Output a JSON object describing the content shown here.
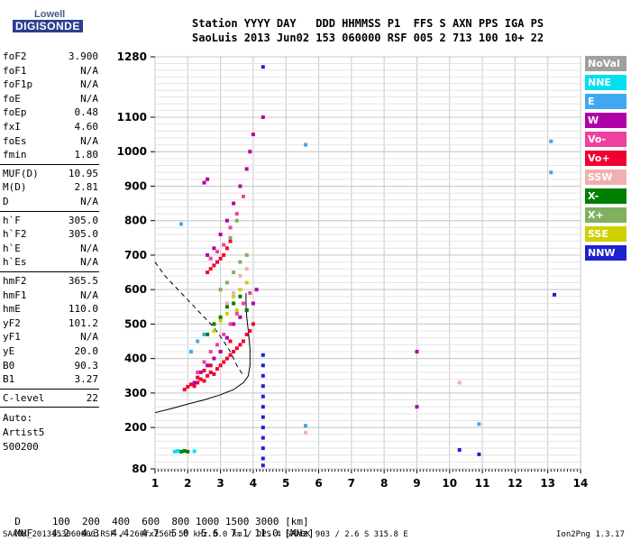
{
  "logo": {
    "line1": "Lowell",
    "line2": "DIGISONDE"
  },
  "header": {
    "labels": "Station YYYY DAY   DDD HHMMSS P1  FFS S AXN PPS IGA PS",
    "values": "SaoLuis 2013 Jun02 153 060000 RSF 005 2 713 100 10+ 22"
  },
  "params": [
    [
      {
        "name": "foF2",
        "value": "3.900"
      },
      {
        "name": "foF1",
        "value": "N/A"
      },
      {
        "name": "foF1p",
        "value": "N/A"
      },
      {
        "name": "foE",
        "value": "N/A"
      },
      {
        "name": "foEp",
        "value": "0.48"
      },
      {
        "name": "fxI",
        "value": "4.60"
      },
      {
        "name": "foEs",
        "value": "N/A"
      },
      {
        "name": "fmin",
        "value": "1.80"
      }
    ],
    [
      {
        "name": "MUF(D)",
        "value": "10.95"
      },
      {
        "name": "M(D)",
        "value": "2.81"
      },
      {
        "name": "D",
        "value": "N/A"
      }
    ],
    [
      {
        "name": "h`F",
        "value": "305.0"
      },
      {
        "name": "h`F2",
        "value": "305.0"
      },
      {
        "name": "h`E",
        "value": "N/A"
      },
      {
        "name": "h`Es",
        "value": "N/A"
      }
    ],
    [
      {
        "name": "hmF2",
        "value": "365.5"
      },
      {
        "name": "hmF1",
        "value": "N/A"
      },
      {
        "name": "hmE",
        "value": "110.0"
      },
      {
        "name": "yF2",
        "value": "101.2"
      },
      {
        "name": "yF1",
        "value": "N/A"
      },
      {
        "name": "yE",
        "value": "20.0"
      },
      {
        "name": "B0",
        "value": "90.3"
      },
      {
        "name": "B1",
        "value": "3.27"
      }
    ],
    [
      {
        "name": "C-level",
        "value": "22"
      }
    ]
  ],
  "auto": [
    "Auto:",
    "Artist5",
    "500200"
  ],
  "legend": [
    {
      "label": "NoVal",
      "color": "#a0a0a0"
    },
    {
      "label": "NNE",
      "color": "#00e0f0"
    },
    {
      "label": "E",
      "color": "#40a8f0"
    },
    {
      "label": "W",
      "color": "#b000a8"
    },
    {
      "label": "Vo-",
      "color": "#f040a0"
    },
    {
      "label": "Vo+",
      "color": "#f00030"
    },
    {
      "label": "SSW",
      "color": "#f0b0b0"
    },
    {
      "label": "X-",
      "color": "#008000"
    },
    {
      "label": "X+",
      "color": "#80b060"
    },
    {
      "label": "SSE",
      "color": "#d0d000"
    },
    {
      "label": "NNW",
      "color": "#2020d0"
    }
  ],
  "muf_table": {
    "d_label": "D",
    "d_values": "100  200  400  600  800 1000 1500 3000 [km]",
    "muf_label": "MUF",
    "muf_values": "4.2  4.3  4.4  4.7  5.0  5.6  7.1 11.0 [MHz]"
  },
  "footer": {
    "left": "SAA0K_2013153060000.RSF / 260fx256h 50 kHz 5.0 km / DPS-4 SAA0K 903 / 2.6 S 315.8 E",
    "right": "Ion2Png 1.3.17"
  },
  "chart_data": {
    "type": "scatter",
    "title": "",
    "xlabel": "",
    "ylabel": "",
    "xlim": [
      1,
      14
    ],
    "ylim": [
      80,
      1280
    ],
    "xticks": [
      1,
      2,
      3,
      4,
      5,
      6,
      7,
      8,
      9,
      10,
      11,
      12,
      13,
      14
    ],
    "yticks": [
      80,
      200,
      300,
      400,
      500,
      600,
      700,
      800,
      900,
      1000,
      1100,
      1280
    ],
    "grid": true,
    "series": [
      {
        "name": "Vo+",
        "color": "#f00030",
        "points": [
          [
            1.9,
            310
          ],
          [
            2.0,
            318
          ],
          [
            2.1,
            325
          ],
          [
            2.2,
            320
          ],
          [
            2.3,
            330
          ],
          [
            2.4,
            340
          ],
          [
            2.5,
            335
          ],
          [
            2.6,
            350
          ],
          [
            2.7,
            360
          ],
          [
            2.8,
            355
          ],
          [
            2.9,
            370
          ],
          [
            3.0,
            380
          ],
          [
            3.1,
            390
          ],
          [
            3.2,
            400
          ],
          [
            3.3,
            410
          ],
          [
            3.4,
            420
          ],
          [
            3.5,
            430
          ],
          [
            3.6,
            440
          ],
          [
            3.7,
            450
          ],
          [
            3.8,
            470
          ],
          [
            3.9,
            480
          ],
          [
            4.0,
            500
          ],
          [
            2.6,
            650
          ],
          [
            2.7,
            660
          ],
          [
            2.8,
            670
          ],
          [
            2.9,
            680
          ],
          [
            3.0,
            690
          ],
          [
            3.1,
            700
          ],
          [
            3.2,
            720
          ],
          [
            3.3,
            740
          ],
          [
            2.3,
            345
          ],
          [
            2.5,
            365
          ],
          [
            2.7,
            380
          ],
          [
            3.0,
            420
          ],
          [
            3.3,
            450
          ]
        ]
      },
      {
        "name": "W",
        "color": "#b000a8",
        "points": [
          [
            2.2,
            330
          ],
          [
            2.4,
            360
          ],
          [
            2.6,
            380
          ],
          [
            2.8,
            400
          ],
          [
            3.0,
            420
          ],
          [
            3.2,
            460
          ],
          [
            3.4,
            500
          ],
          [
            3.6,
            520
          ],
          [
            3.8,
            540
          ],
          [
            4.0,
            560
          ],
          [
            4.1,
            600
          ],
          [
            2.6,
            700
          ],
          [
            2.8,
            720
          ],
          [
            3.0,
            760
          ],
          [
            3.2,
            800
          ],
          [
            3.4,
            850
          ],
          [
            3.6,
            900
          ],
          [
            3.8,
            950
          ],
          [
            3.9,
            1000
          ],
          [
            4.0,
            1050
          ],
          [
            2.5,
            910
          ],
          [
            2.6,
            920
          ],
          [
            4.3,
            1100
          ]
        ]
      },
      {
        "name": "Vo-",
        "color": "#f040a0",
        "points": [
          [
            2.3,
            360
          ],
          [
            2.5,
            390
          ],
          [
            2.7,
            420
          ],
          [
            2.9,
            440
          ],
          [
            3.1,
            470
          ],
          [
            3.3,
            500
          ],
          [
            3.5,
            530
          ],
          [
            3.7,
            560
          ],
          [
            3.9,
            590
          ],
          [
            2.7,
            690
          ],
          [
            2.9,
            710
          ],
          [
            3.1,
            730
          ],
          [
            3.3,
            780
          ],
          [
            3.5,
            820
          ],
          [
            3.7,
            870
          ]
        ]
      },
      {
        "name": "X-",
        "color": "#008000",
        "points": [
          [
            2.6,
            470
          ],
          [
            2.8,
            500
          ],
          [
            3.0,
            520
          ],
          [
            3.2,
            550
          ],
          [
            3.4,
            560
          ],
          [
            3.6,
            580
          ],
          [
            3.8,
            540
          ],
          [
            1.8,
            130
          ],
          [
            1.9,
            132
          ],
          [
            2.0,
            130
          ]
        ]
      },
      {
        "name": "SSE",
        "color": "#d0d000",
        "points": [
          [
            2.8,
            480
          ],
          [
            3.0,
            510
          ],
          [
            3.2,
            530
          ],
          [
            3.4,
            580
          ],
          [
            3.6,
            600
          ],
          [
            3.8,
            620
          ],
          [
            3.5,
            540
          ]
        ]
      },
      {
        "name": "X+",
        "color": "#80b060",
        "points": [
          [
            3.0,
            600
          ],
          [
            3.2,
            620
          ],
          [
            3.4,
            650
          ],
          [
            3.6,
            680
          ],
          [
            3.8,
            700
          ],
          [
            3.3,
            750
          ],
          [
            3.5,
            800
          ]
        ]
      },
      {
        "name": "SSW",
        "color": "#f0b0b0",
        "points": [
          [
            3.2,
            560
          ],
          [
            3.4,
            590
          ],
          [
            3.6,
            640
          ],
          [
            3.8,
            660
          ],
          [
            10.3,
            330
          ],
          [
            5.6,
            185
          ]
        ]
      },
      {
        "name": "E",
        "color": "#40a8f0",
        "points": [
          [
            2.1,
            420
          ],
          [
            2.3,
            450
          ],
          [
            2.5,
            470
          ],
          [
            1.8,
            790
          ],
          [
            5.6,
            1020
          ],
          [
            5.6,
            205
          ],
          [
            10.9,
            210
          ],
          [
            13.1,
            1030
          ],
          [
            13.1,
            940
          ]
        ]
      },
      {
        "name": "NNE",
        "color": "#00e0f0",
        "points": [
          [
            1.6,
            130
          ],
          [
            1.7,
            132
          ],
          [
            2.2,
            131
          ]
        ]
      },
      {
        "name": "NNW",
        "color": "#2020d0",
        "points": [
          [
            4.3,
            1250
          ],
          [
            4.3,
            90
          ],
          [
            4.3,
            110
          ],
          [
            4.3,
            140
          ],
          [
            4.3,
            170
          ],
          [
            4.3,
            200
          ],
          [
            4.3,
            230
          ],
          [
            4.3,
            260
          ],
          [
            4.3,
            290
          ],
          [
            4.3,
            320
          ],
          [
            4.3,
            350
          ],
          [
            4.3,
            380
          ],
          [
            4.3,
            410
          ],
          [
            10.3,
            135
          ],
          [
            10.9,
            122
          ],
          [
            13.2,
            585
          ]
        ]
      },
      {
        "name": "W-isolated",
        "color": "#b000a8",
        "points": [
          [
            9.0,
            420
          ],
          [
            9.0,
            260
          ]
        ]
      }
    ],
    "curves": {
      "profile_solid": [
        [
          1.0,
          243
        ],
        [
          1.5,
          255
        ],
        [
          2.0,
          268
        ],
        [
          2.5,
          280
        ],
        [
          3.0,
          295
        ],
        [
          3.4,
          310
        ],
        [
          3.7,
          330
        ],
        [
          3.85,
          350
        ],
        [
          3.9,
          380
        ],
        [
          3.9,
          430
        ],
        [
          3.85,
          480
        ],
        [
          3.8,
          520
        ],
        [
          3.78,
          560
        ],
        [
          3.78,
          590
        ]
      ],
      "profile_dashed": [
        [
          1.0,
          680
        ],
        [
          1.3,
          640
        ],
        [
          1.6,
          610
        ],
        [
          1.9,
          580
        ],
        [
          2.2,
          550
        ],
        [
          2.5,
          520
        ],
        [
          2.8,
          490
        ],
        [
          3.1,
          450
        ],
        [
          3.3,
          420
        ],
        [
          3.5,
          380
        ],
        [
          3.7,
          350
        ]
      ]
    }
  }
}
